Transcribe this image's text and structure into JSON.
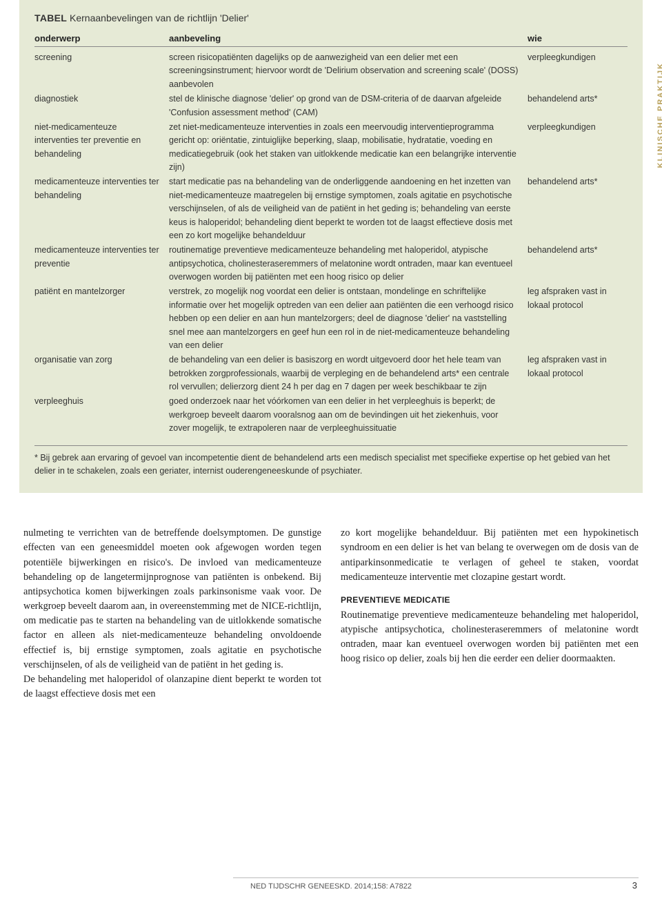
{
  "side_label": "KLINISCHE PRAKTIJK",
  "table": {
    "title_prefix": "TABEL",
    "title_rest": "  Kernaanbevelingen van de richtlijn 'Delier'",
    "headers": {
      "c1": "onderwerp",
      "c2": "aanbeveling",
      "c3": "wie"
    },
    "rows": [
      {
        "c1": "screening",
        "c2": "screen risicopatiënten dagelijks op de aanwezigheid van een delier met een screeningsinstrument; hiervoor wordt de 'Delirium observation and screening scale' (DOSS) aanbevolen",
        "c3": "verpleegkundigen"
      },
      {
        "c1": "diagnostiek",
        "c2": "stel de klinische diagnose 'delier' op grond van de DSM-criteria of de daarvan afgeleide 'Confusion assessment method' (CAM)",
        "c3": "behandelend arts*"
      },
      {
        "c1": "niet-medicamenteuze interventies ter preventie en behandeling",
        "c2": "zet niet-medicamenteuze interventies in zoals een meervoudig interventieprogramma gericht op: oriëntatie, zintuiglijke beperking, slaap, mobilisatie, hydratatie, voeding en medicatiegebruik (ook het staken van uitlokkende medicatie kan een belangrijke interventie zijn)",
        "c3": "verpleegkundigen"
      },
      {
        "c1": "medicamenteuze interventies ter behandeling",
        "c2": "start medicatie pas na behandeling van de onderliggende aandoening en het inzetten van niet-medicamenteuze maatregelen bij ernstige symptomen, zoals agitatie en psychotische verschijnselen, of als de veiligheid van de patiënt in het geding is; behandeling van eerste keus is haloperidol; behandeling dient beperkt te worden tot de laagst effectieve dosis met een zo kort mogelijke behandelduur",
        "c3": "behandelend arts*"
      },
      {
        "c1": "medicamenteuze interventies ter preventie",
        "c2": "routinematige preventieve medicamenteuze behandeling met haloperidol, atypische antipsychotica, cholinesteraseremmers of melatonine wordt ontraden, maar kan eventueel overwogen worden bij patiënten met een hoog risico op delier",
        "c3": "behandelend arts*"
      },
      {
        "c1": "patiënt en mantelzorger",
        "c2": "verstrek, zo mogelijk nog voordat een delier is ontstaan, mondelinge en schriftelijke informatie over het mogelijk optreden van een delier aan patiënten die een verhoogd risico hebben op een delier en aan hun mantelzorgers; deel de diagnose 'delier' na vaststelling snel mee aan mantelzorgers en geef hun een rol in de niet-medicamenteuze behandeling van een delier",
        "c3": "leg afspraken vast in lokaal protocol"
      },
      {
        "c1": "organisatie van zorg",
        "c2": "de behandeling van een delier is basiszorg en wordt uitgevoerd door het hele team van betrokken zorgprofessionals, waarbij de verpleging en de behandelend arts* een centrale rol vervullen; delierzorg dient 24 h per dag en 7 dagen per week beschikbaar te zijn",
        "c3": "leg afspraken vast in lokaal protocol"
      },
      {
        "c1": "verpleeghuis",
        "c2": "goed onderzoek naar het vóórkomen van een delier in het verpleeghuis is beperkt; de werkgroep beveelt daarom vooralsnog aan om de bevindingen uit het ziekenhuis, voor zover mogelijk, te extrapoleren naar de verpleeghuissituatie",
        "c3": ""
      }
    ],
    "footnote": "* Bij gebrek aan ervaring of gevoel van incompetentie dient de behandelend arts een medisch specialist met specifieke expertise op het gebied van het delier in te schakelen, zoals een geriater, internist ouderengeneeskunde of psychiater."
  },
  "body": {
    "left_p1": "nulmeting te verrichten van de betreffende doelsymptomen. De gunstige effecten van een geneesmiddel moeten ook afgewogen worden tegen potentiële bijwerkingen en risico's. De invloed van medicamenteuze behandeling op de langetermijnprognose van patiënten is onbekend. Bij antipsychotica komen bijwerkingen zoals parkinsonisme vaak voor. De werkgroep beveelt daarom aan, in overeenstemming met de NICE-richtlijn, om medicatie pas te starten na behandeling van de uitlokkende somatische factor en alleen als niet-medicamenteuze behandeling onvoldoende effectief is, bij ernstige symptomen, zoals agitatie en psychotische verschijnselen, of als de veiligheid van de patiënt in het geding is.",
    "left_p2": "De behandeling met haloperidol of olanzapine dient beperkt te worden tot de laagst effectieve dosis met een",
    "right_p1": "zo kort mogelijke behandelduur. Bij patiënten met een hypokinetisch syndroom en een delier is het van belang te overwegen om de dosis van de antiparkinsonmedicatie te verlagen of geheel te staken, voordat medicamenteuze interventie met clozapine gestart wordt.",
    "right_head": "PREVENTIEVE MEDICATIE",
    "right_p2": "Routinematige preventieve medicamenteuze behandeling met haloperidol, atypische antipsychotica, cholinesteraseremmers of melatonine wordt ontraden, maar kan eventueel overwogen worden bij patiënten met een hoog risico op delier, zoals bij hen die eerder een delier doormaakten."
  },
  "footer": {
    "journal": "NED TIJDSCHR GENEESKD. 2014;158: A7822",
    "page": "3"
  },
  "colors": {
    "box_bg": "#e6ead6",
    "side_label": "#b8a05a",
    "text": "#222222",
    "rule": "#888888"
  }
}
